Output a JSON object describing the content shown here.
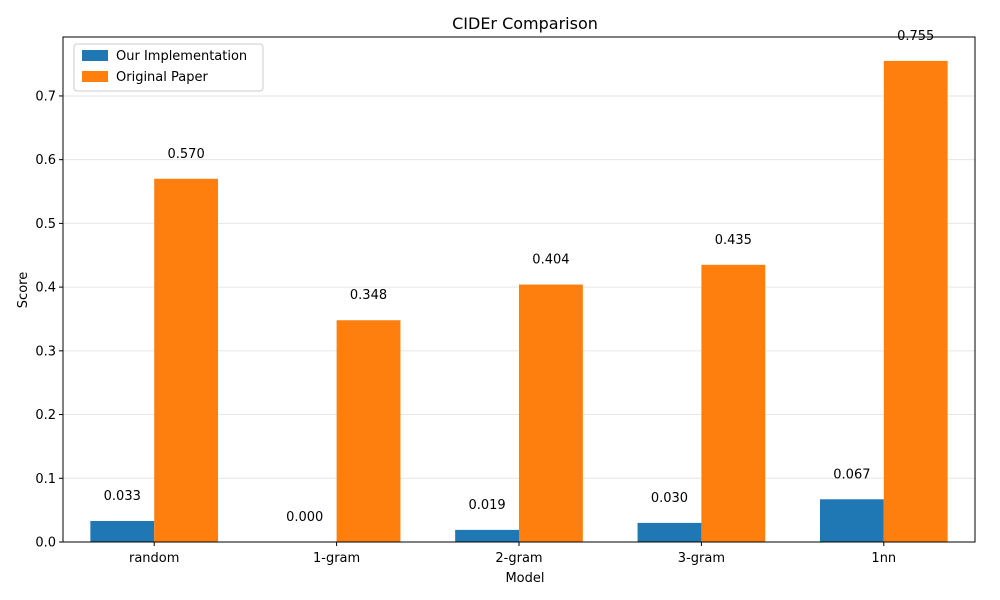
{
  "chart_data": {
    "type": "bar",
    "title": "CIDEr Comparison",
    "xlabel": "Model",
    "ylabel": "Score",
    "categories": [
      "random",
      "1-gram",
      "2-gram",
      "3-gram",
      "1nn"
    ],
    "series": [
      {
        "name": "Our Implementation",
        "color": "#1f77b4",
        "values": [
          0.033,
          0.0,
          0.019,
          0.03,
          0.067
        ]
      },
      {
        "name": "Original Paper",
        "color": "#ff7f0e",
        "values": [
          0.57,
          0.348,
          0.404,
          0.435,
          0.755
        ]
      }
    ],
    "ylim": [
      0,
      0.7925
    ],
    "yticks": [
      0.0,
      0.1,
      0.2,
      0.3,
      0.4,
      0.5,
      0.6,
      0.7
    ],
    "ytick_labels": [
      "0.0",
      "0.1",
      "0.2",
      "0.3",
      "0.4",
      "0.5",
      "0.6",
      "0.7"
    ],
    "grid": "y",
    "legend": "top-left",
    "value_labels": true
  }
}
